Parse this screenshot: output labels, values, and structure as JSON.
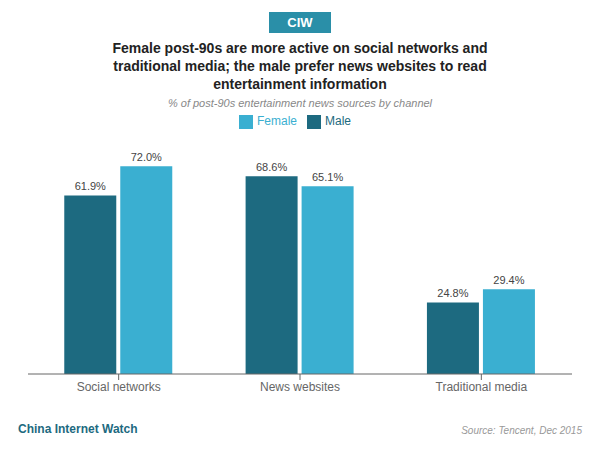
{
  "chart_data": {
    "type": "bar",
    "title": "Female post-90s are more active on social networks and\ntraditional media; the male prefer news websites to read\nentertainment information",
    "subtitle": "% of post-90s entertainment news sources by channel",
    "categories": [
      "Social networks",
      "News websites",
      "Traditional media"
    ],
    "series": [
      {
        "name": "Male",
        "color": "#1d6a80",
        "values": [
          61.9,
          68.6,
          24.8
        ],
        "value_labels": [
          "61.9%",
          "68.6%",
          "24.8%"
        ]
      },
      {
        "name": "Female",
        "color": "#3aafd1",
        "values": [
          72.0,
          65.1,
          29.4
        ],
        "value_labels": [
          "72.0%",
          "65.1%",
          "29.4%"
        ]
      }
    ],
    "ylim": [
      0,
      85
    ],
    "data_labels": true,
    "tick_labels": "x",
    "grid": false,
    "legend": "top",
    "annotations": [
      "CIW",
      "China Internet Watch",
      "Source: Tencent, Dec 2015"
    ]
  }
}
